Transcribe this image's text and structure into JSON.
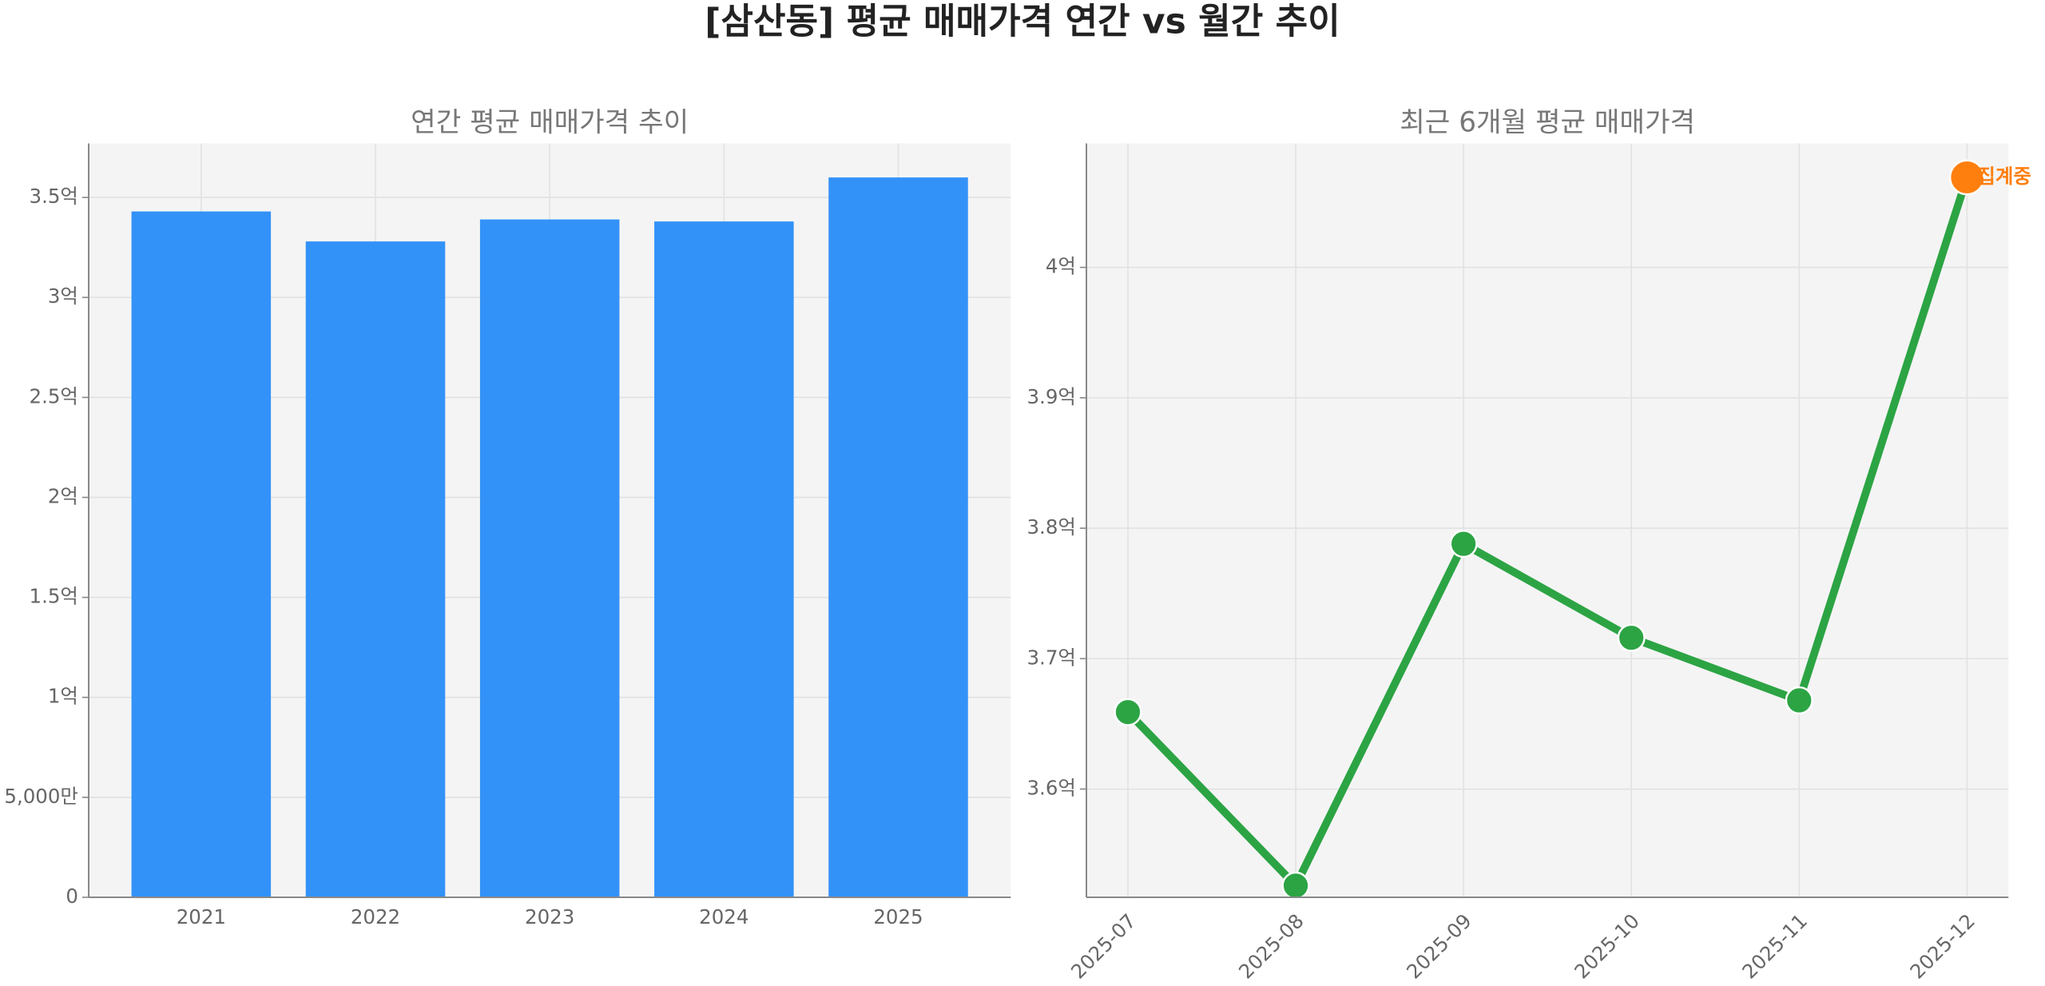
{
  "title": "[삼산동] 평균 매매가격 연간 vs 월간 추이",
  "chart_data": [
    {
      "type": "bar",
      "title": "연간 평균 매매가격 추이",
      "categories": [
        "2021",
        "2022",
        "2023",
        "2024",
        "2025"
      ],
      "values": [
        343000000,
        328000000,
        339000000,
        338000000,
        360000000
      ],
      "color": "#3392f8",
      "ylim": [
        0,
        377000000
      ],
      "yticks": [
        0,
        {
          "value": 50000000,
          "label": "5,000만"
        },
        {
          "value": 100000000,
          "label": "1억"
        },
        {
          "value": 150000000,
          "label": "1.5억"
        },
        {
          "value": 200000000,
          "label": "2억"
        },
        {
          "value": 250000000,
          "label": "2.5억"
        },
        {
          "value": 300000000,
          "label": "3억"
        },
        {
          "value": 350000000,
          "label": "3.5억"
        }
      ],
      "grid": true
    },
    {
      "type": "line",
      "title": "최근 6개월 평균 매매가격",
      "categories": [
        "2025-07",
        "2025-08",
        "2025-09",
        "2025-10",
        "2025-11",
        "2025-12"
      ],
      "series": [
        {
          "name": "평균 매매가격",
          "color": "#2ca444",
          "values": [
            365900000,
            352600000,
            378800000,
            371600000,
            366800000,
            406900000
          ]
        }
      ],
      "ylim": [
        351700000,
        409500000
      ],
      "yticks": [
        {
          "value": 360000000,
          "label": "3.6억"
        },
        {
          "value": 370000000,
          "label": "3.7억"
        },
        {
          "value": 380000000,
          "label": "3.8억"
        },
        {
          "value": 390000000,
          "label": "3.9억"
        },
        {
          "value": 400000000,
          "label": "4억"
        }
      ],
      "grid": true,
      "annotations": [
        {
          "text": "집계중",
          "category": "2025-12",
          "color": "#ff7f0e"
        }
      ]
    }
  ]
}
